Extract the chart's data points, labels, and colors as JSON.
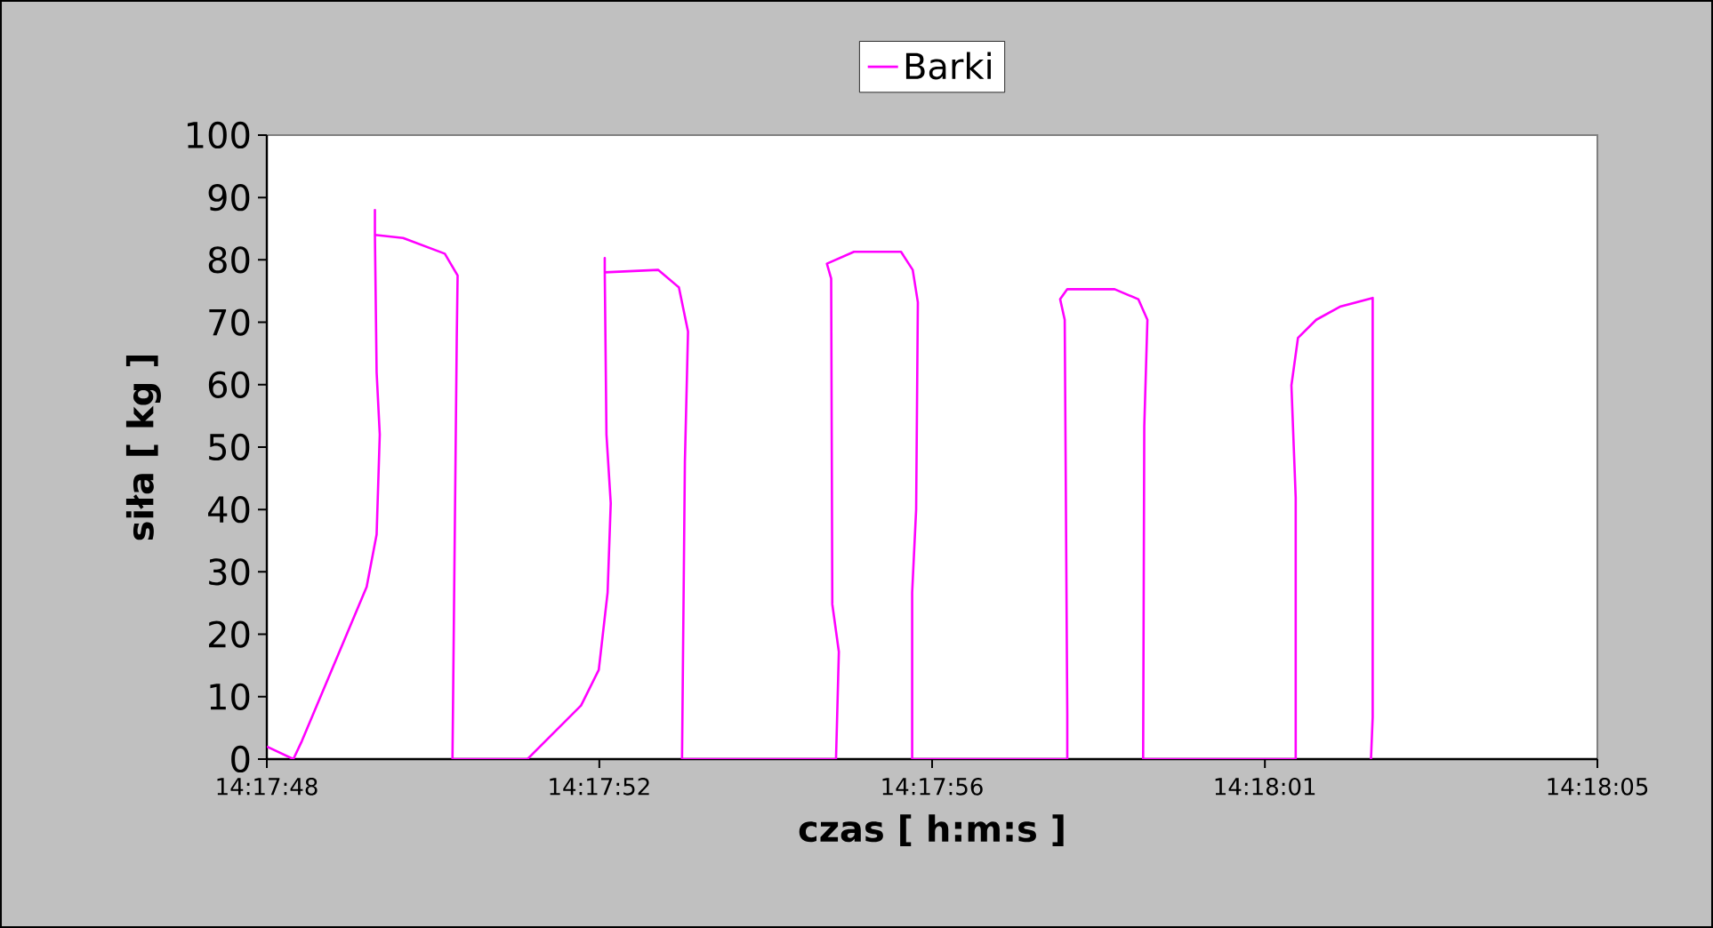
{
  "chart_data": {
    "type": "line",
    "xlabel": "czas [ h:m:s ]",
    "ylabel": "siła  [ kg ]",
    "x": [
      14.296667,
      14.29676,
      14.29679,
      14.297017,
      14.297052,
      14.297063,
      14.297052,
      14.297046,
      14.297046,
      14.297046,
      14.297145,
      14.297291,
      14.297336,
      14.297333,
      14.297318,
      14.297581,
      14.297769,
      14.297831,
      14.297862,
      14.297873,
      14.297858,
      14.297852,
      14.297852,
      14.297852,
      14.298039,
      14.298112,
      14.298144,
      14.298133,
      14.298123,
      14.298663,
      14.298673,
      14.29865,
      14.298646,
      14.298631,
      14.298726,
      14.298891,
      14.298932,
      14.29895,
      14.298944,
      14.29893,
      14.29893,
      14.299204,
      14.299474,
      14.299474,
      14.299465,
      14.299449,
      14.299474,
      14.29964,
      14.299723,
      14.299755,
      14.299744,
      14.29974,
      14.300275,
      14.300275,
      14.30026,
      14.300283,
      14.300347,
      14.30043,
      14.300545,
      14.300545,
      14.300539
    ],
    "series": [
      {
        "name": "Barki",
        "color": "#ff00ff",
        "values": [
          2.0,
          0,
          2.9,
          27.6,
          36,
          52,
          62,
          84,
          88,
          84,
          83.5,
          81,
          77.5,
          67.5,
          0,
          0,
          8.6,
          14.3,
          26.7,
          41,
          52,
          78,
          80.3,
          78,
          78.4,
          75.6,
          68.5,
          47.6,
          0,
          0,
          17.2,
          24.8,
          77,
          79.4,
          81.3,
          81.3,
          78.4,
          73.2,
          40,
          26.7,
          0,
          0,
          0,
          7.2,
          70.4,
          73.7,
          75.3,
          75.3,
          73.7,
          70.4,
          53.3,
          0,
          0,
          41.9,
          59.9,
          67.5,
          70.4,
          72.5,
          73.9,
          6.7,
          0
        ]
      }
    ],
    "xlim": [
      14.296667,
      14.301333
    ],
    "xticks": [
      {
        "value": 14.296667,
        "label": "14:17:48"
      },
      {
        "value": 14.297833,
        "label": "14:17:52"
      },
      {
        "value": 14.299,
        "label": "14:17:56"
      },
      {
        "value": 14.300167,
        "label": "14:18:01"
      },
      {
        "value": 14.301333,
        "label": "14:18:05"
      }
    ],
    "ylim": [
      0,
      100
    ],
    "yticks": [
      0,
      10,
      20,
      30,
      40,
      50,
      60,
      70,
      80,
      90,
      100
    ],
    "legend": "top",
    "marker": "none",
    "line_style": "solid"
  }
}
